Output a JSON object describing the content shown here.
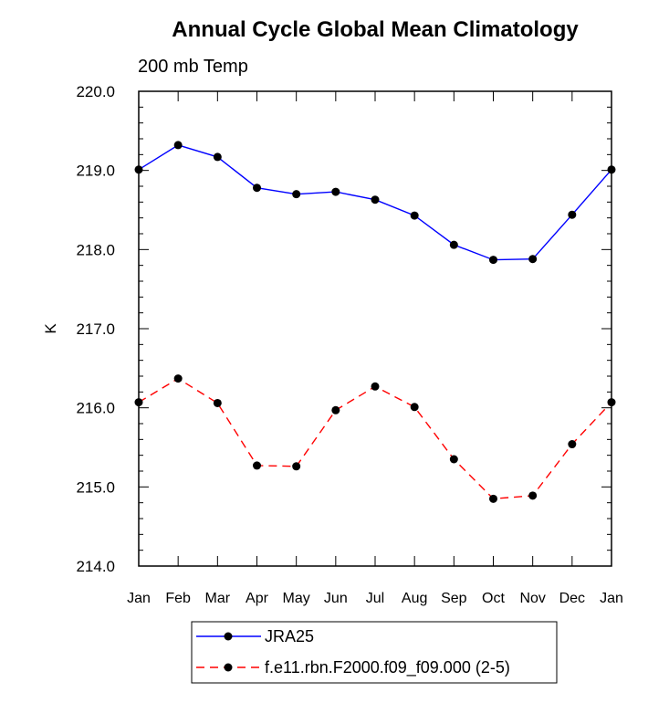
{
  "chart_data": {
    "type": "line",
    "title": "Annual Cycle Global Mean Climatology",
    "subtitle": "200 mb Temp",
    "xlabel": "",
    "ylabel": "K",
    "categories": [
      "Jan",
      "Feb",
      "Mar",
      "Apr",
      "May",
      "Jun",
      "Jul",
      "Aug",
      "Sep",
      "Oct",
      "Nov",
      "Dec",
      "Jan"
    ],
    "ylim": [
      214.0,
      220.0
    ],
    "yticks": [
      "214.0",
      "215.0",
      "216.0",
      "217.0",
      "218.0",
      "219.0",
      "220.0"
    ],
    "grid": false,
    "legend_position": "bottom",
    "series": [
      {
        "name": "JRA25",
        "color": "#0000ff",
        "line_style": "solid",
        "marker": "filled-circle",
        "values": [
          219.01,
          219.32,
          219.17,
          218.78,
          218.7,
          218.73,
          218.63,
          218.43,
          218.06,
          217.87,
          217.88,
          218.44,
          219.01
        ]
      },
      {
        "name": "f.e11.rbn.F2000.f09_f09.000 (2-5)",
        "color": "#ff0000",
        "line_style": "dashed",
        "marker": "filled-circle",
        "values": [
          216.07,
          216.37,
          216.06,
          215.27,
          215.26,
          215.97,
          216.27,
          216.01,
          215.35,
          214.85,
          214.89,
          215.54,
          216.07
        ]
      }
    ]
  }
}
